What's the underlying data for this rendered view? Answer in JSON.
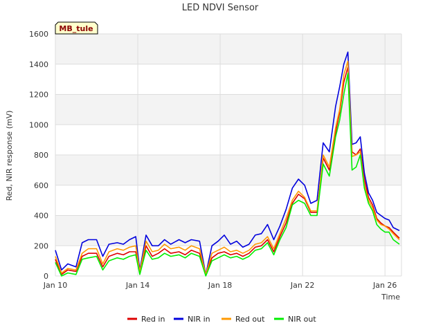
{
  "chart_data": {
    "type": "line",
    "title": "LED NDVI Sensor",
    "xlabel": "Time",
    "ylabel": "Red, NIR response (mV)",
    "badge": "MB_tule",
    "xlim": [
      10,
      26.8
    ],
    "ylim": [
      0,
      1600
    ],
    "x_ticks": [
      {
        "x": 10,
        "label": "Jan 10"
      },
      {
        "x": 14,
        "label": "Jan 14"
      },
      {
        "x": 18,
        "label": "Jan 18"
      },
      {
        "x": 22,
        "label": "Jan 22"
      },
      {
        "x": 26,
        "label": "Jan 26"
      }
    ],
    "y_ticks": [
      0,
      200,
      400,
      600,
      800,
      1000,
      1200,
      1400,
      1600
    ],
    "grid": true,
    "legend_position": "bottom",
    "series": [
      {
        "name": "Red in",
        "color": "#dd0000",
        "x": [
          10.0,
          10.3,
          10.6,
          11.0,
          11.3,
          11.6,
          12.0,
          12.3,
          12.6,
          13.0,
          13.3,
          13.6,
          13.9,
          14.1,
          14.4,
          14.7,
          15.0,
          15.3,
          15.6,
          16.0,
          16.3,
          16.6,
          17.0,
          17.3,
          17.6,
          17.9,
          18.2,
          18.5,
          18.8,
          19.1,
          19.4,
          19.7,
          20.0,
          20.3,
          20.6,
          20.9,
          21.2,
          21.5,
          21.8,
          22.1,
          22.4,
          22.7,
          23.0,
          23.3,
          23.6,
          23.8,
          24.0,
          24.2,
          24.4,
          24.6,
          24.8,
          25.0,
          25.2,
          25.4,
          25.6,
          25.8,
          26.0,
          26.2,
          26.4,
          26.7
        ],
        "y": [
          110,
          10,
          40,
          30,
          130,
          150,
          150,
          60,
          130,
          150,
          140,
          160,
          160,
          20,
          200,
          130,
          150,
          180,
          150,
          160,
          140,
          170,
          150,
          10,
          120,
          150,
          160,
          140,
          150,
          130,
          150,
          190,
          200,
          240,
          160,
          260,
          350,
          480,
          540,
          510,
          420,
          420,
          780,
          700,
          950,
          1080,
          1280,
          1380,
          820,
          800,
          840,
          640,
          520,
          470,
          380,
          350,
          330,
          320,
          290,
          250
        ]
      },
      {
        "name": "NIR in",
        "color": "#0000dd",
        "x": [
          10.0,
          10.3,
          10.6,
          11.0,
          11.3,
          11.6,
          12.0,
          12.3,
          12.6,
          13.0,
          13.3,
          13.6,
          13.9,
          14.1,
          14.4,
          14.7,
          15.0,
          15.3,
          15.6,
          16.0,
          16.3,
          16.6,
          17.0,
          17.3,
          17.6,
          17.9,
          18.2,
          18.5,
          18.8,
          19.1,
          19.4,
          19.7,
          20.0,
          20.3,
          20.6,
          20.9,
          21.2,
          21.5,
          21.8,
          22.1,
          22.4,
          22.7,
          23.0,
          23.3,
          23.6,
          23.8,
          24.0,
          24.2,
          24.4,
          24.6,
          24.8,
          25.0,
          25.2,
          25.4,
          25.6,
          25.8,
          26.0,
          26.2,
          26.4,
          26.7
        ],
        "y": [
          170,
          40,
          80,
          60,
          220,
          240,
          240,
          130,
          210,
          220,
          210,
          240,
          260,
          40,
          270,
          200,
          200,
          240,
          210,
          240,
          220,
          240,
          230,
          10,
          200,
          230,
          270,
          210,
          230,
          190,
          210,
          270,
          280,
          340,
          240,
          330,
          440,
          580,
          640,
          600,
          480,
          500,
          880,
          820,
          1120,
          1250,
          1400,
          1480,
          870,
          880,
          920,
          680,
          550,
          500,
          420,
          400,
          380,
          370,
          320,
          300
        ]
      },
      {
        "name": "Red out",
        "color": "#ff9900",
        "x": [
          10.0,
          10.3,
          10.6,
          11.0,
          11.3,
          11.6,
          12.0,
          12.3,
          12.6,
          13.0,
          13.3,
          13.6,
          13.9,
          14.1,
          14.4,
          14.7,
          15.0,
          15.3,
          15.6,
          16.0,
          16.3,
          16.6,
          17.0,
          17.3,
          17.6,
          17.9,
          18.2,
          18.5,
          18.8,
          19.1,
          19.4,
          19.7,
          20.0,
          20.3,
          20.6,
          20.9,
          21.2,
          21.5,
          21.8,
          22.1,
          22.4,
          22.7,
          23.0,
          23.3,
          23.6,
          23.8,
          24.0,
          24.2,
          24.4,
          24.6,
          24.8,
          25.0,
          25.2,
          25.4,
          25.6,
          25.8,
          26.0,
          26.2,
          26.4,
          26.7
        ],
        "y": [
          130,
          20,
          50,
          40,
          150,
          180,
          180,
          80,
          160,
          180,
          170,
          190,
          200,
          30,
          230,
          160,
          170,
          210,
          180,
          190,
          170,
          200,
          180,
          10,
          150,
          170,
          190,
          160,
          170,
          150,
          170,
          210,
          220,
          260,
          180,
          280,
          380,
          500,
          560,
          520,
          430,
          430,
          800,
          720,
          980,
          1100,
          1330,
          1420,
          790,
          800,
          820,
          600,
          500,
          450,
          370,
          340,
          330,
          310,
          280,
          240
        ]
      },
      {
        "name": "NIR out",
        "color": "#00ee00",
        "x": [
          10.0,
          10.3,
          10.6,
          11.0,
          11.3,
          11.6,
          12.0,
          12.3,
          12.6,
          13.0,
          13.3,
          13.6,
          13.9,
          14.1,
          14.4,
          14.7,
          15.0,
          15.3,
          15.6,
          16.0,
          16.3,
          16.6,
          17.0,
          17.3,
          17.6,
          17.9,
          18.2,
          18.5,
          18.8,
          19.1,
          19.4,
          19.7,
          20.0,
          20.3,
          20.6,
          20.9,
          21.2,
          21.5,
          21.8,
          22.1,
          22.4,
          22.7,
          23.0,
          23.3,
          23.6,
          23.8,
          24.0,
          24.2,
          24.4,
          24.6,
          24.8,
          25.0,
          25.2,
          25.4,
          25.6,
          25.8,
          26.0,
          26.2,
          26.4,
          26.7
        ],
        "y": [
          90,
          0,
          20,
          10,
          110,
          120,
          130,
          40,
          100,
          120,
          110,
          130,
          140,
          10,
          170,
          110,
          120,
          150,
          130,
          140,
          120,
          150,
          130,
          0,
          100,
          120,
          140,
          120,
          130,
          110,
          130,
          170,
          180,
          220,
          140,
          240,
          320,
          470,
          500,
          480,
          400,
          400,
          740,
          660,
          920,
          1030,
          1200,
          1340,
          700,
          720,
          800,
          580,
          480,
          430,
          340,
          310,
          290,
          290,
          240,
          210
        ]
      }
    ]
  }
}
